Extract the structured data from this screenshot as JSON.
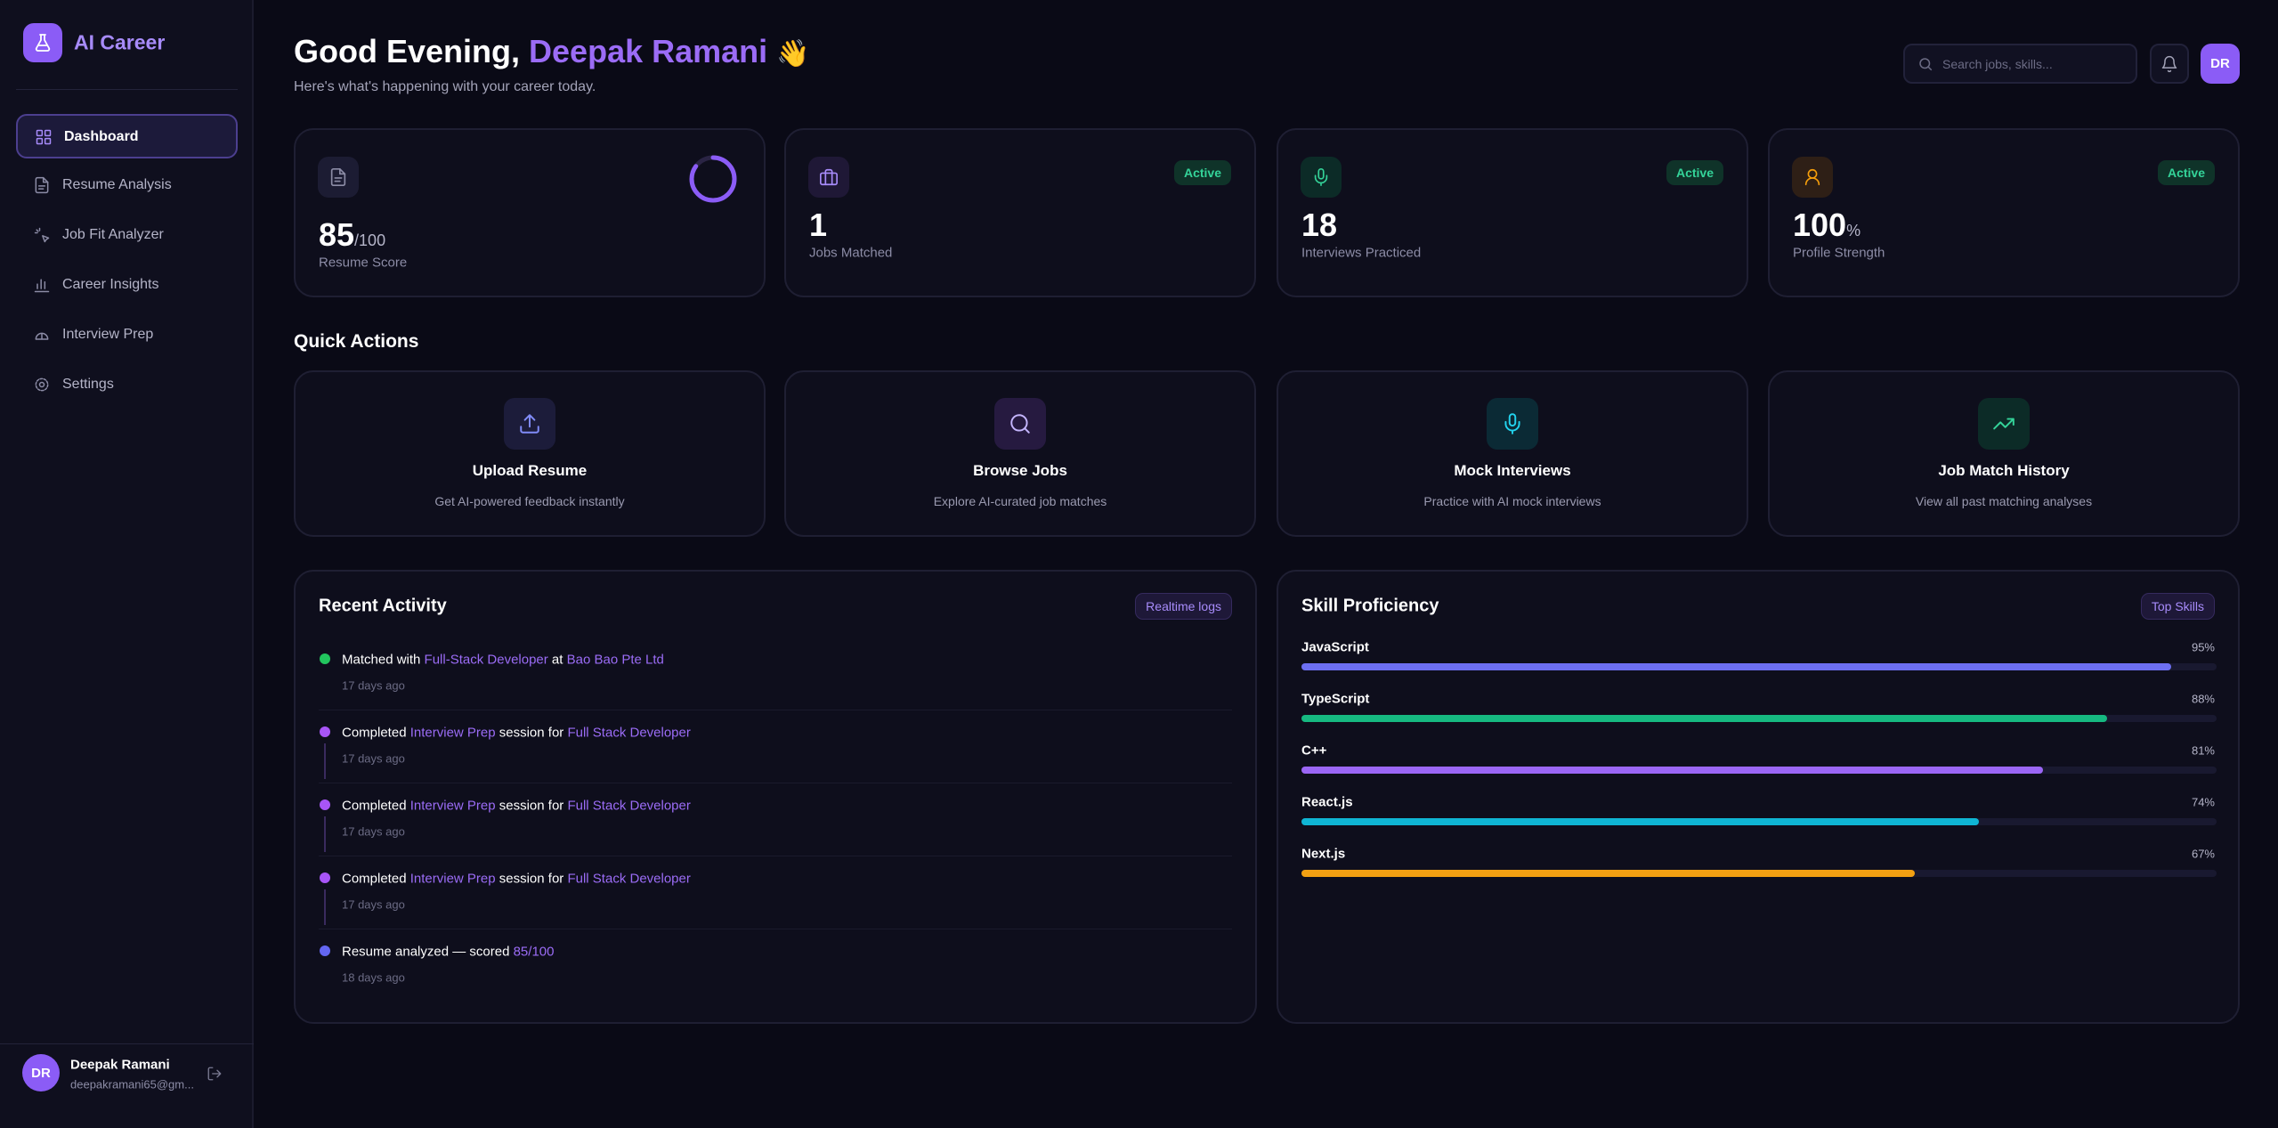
{
  "sidebar": {
    "brand": "AI Career",
    "nav": [
      "Dashboard",
      "Resume Analysis",
      "Job Fit Analyzer",
      "Career Insights",
      "Interview Prep",
      "Settings"
    ],
    "user": {
      "initials": "DR",
      "name": "Deepak Ramani",
      "email": "deepakramani65@gm..."
    }
  },
  "header": {
    "greeting": "Good Evening,",
    "name": "Deepak Ramani",
    "emoji": "👋",
    "subtitle": "Here's what's happening with your career today.",
    "search_placeholder": "Search jobs, skills...",
    "avatar": "DR"
  },
  "stats": [
    {
      "value": 85,
      "suffix": "/100",
      "label": "Resume Score"
    },
    {
      "value": 1,
      "label": "Jobs Matched",
      "badge": "Active"
    },
    {
      "value": 18,
      "label": "Interviews Practiced",
      "badge": "Active"
    },
    {
      "value": 100,
      "suffix": "%",
      "label": "Profile Strength",
      "badge": "Active"
    }
  ],
  "quick_actions": {
    "title": "Quick Actions",
    "items": [
      {
        "title": "Upload Resume",
        "desc": "Get AI-powered feedback instantly"
      },
      {
        "title": "Browse Jobs",
        "desc": "Explore AI-curated job matches"
      },
      {
        "title": "Mock Interviews",
        "desc": "Practice with AI mock interviews"
      },
      {
        "title": "Job Match History",
        "desc": "View all past matching analyses"
      }
    ]
  },
  "activity": {
    "title": "Recent Activity",
    "badge": "Realtime logs",
    "items": [
      {
        "parts": [
          "Matched with ",
          "Full-Stack Developer",
          " at ",
          "Bao Bao Pte Ltd"
        ],
        "time": "17 days ago",
        "color": "#22c55e"
      },
      {
        "parts": [
          "Completed ",
          "Interview Prep",
          " session for ",
          "Full Stack Developer"
        ],
        "time": "17 days ago",
        "color": "#a855f7"
      },
      {
        "parts": [
          "Completed ",
          "Interview Prep",
          " session for ",
          "Full Stack Developer"
        ],
        "time": "17 days ago",
        "color": "#a855f7"
      },
      {
        "parts": [
          "Completed ",
          "Interview Prep",
          " session for ",
          "Full Stack Developer"
        ],
        "time": "17 days ago",
        "color": "#a855f7"
      },
      {
        "parts": [
          "Resume analyzed — scored ",
          "85/100"
        ],
        "time": "18 days ago",
        "color": "#6366f1"
      }
    ]
  },
  "skills": {
    "title": "Skill Proficiency",
    "badge": "Top Skills",
    "items": [
      {
        "name": "JavaScript",
        "value": 95,
        "label": "95%",
        "color": "#6d6ff2"
      },
      {
        "name": "TypeScript",
        "value": 88,
        "label": "88%",
        "color": "#16b981"
      },
      {
        "name": "C++",
        "value": 81,
        "label": "81%",
        "color": "#9b66f5"
      },
      {
        "name": "React.js",
        "value": 74,
        "label": "74%",
        "color": "#0fb5d4"
      },
      {
        "name": "Next.js",
        "value": 67,
        "label": "67%",
        "color": "#f2a012"
      }
    ]
  }
}
